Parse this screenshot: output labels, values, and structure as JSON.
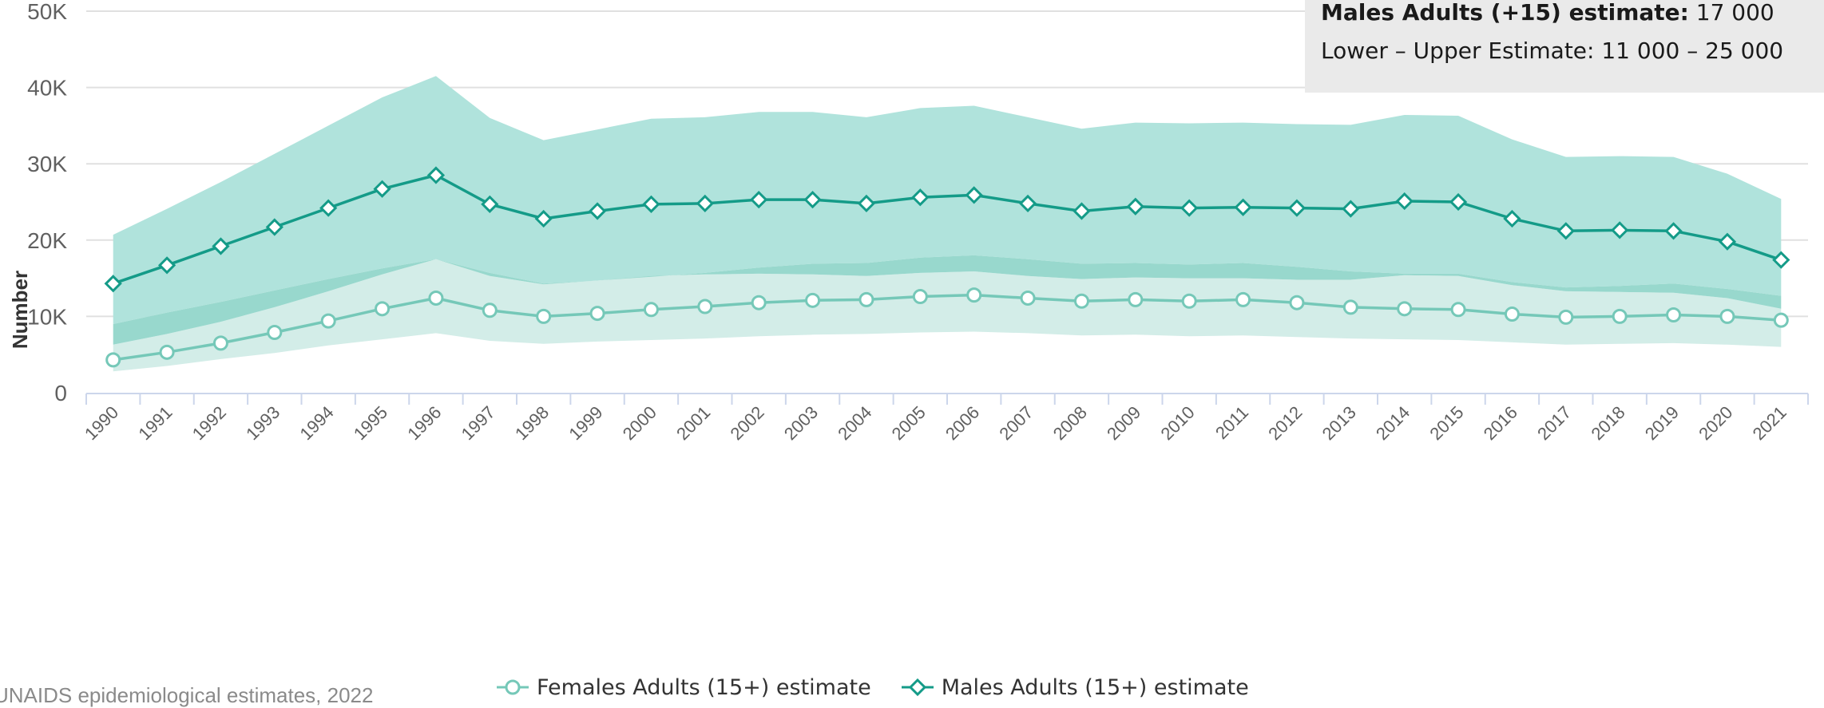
{
  "tooltip": {
    "line1_label": "Males Adults (+15) estimate:",
    "line1_value": "17 000",
    "line2": "Lower – Upper Estimate: 11 000 – 25 000"
  },
  "source_text": "UNAIDS epidemiological estimates, 2022",
  "colors": {
    "female_line": "#75c8b8",
    "male_line": "#149b88",
    "female_band": "#d3ede8",
    "male_band": "#b0e3dc",
    "band_overlap": "#98d8cd",
    "grid": "#e0e0e0",
    "axis": "#ccd6eb"
  },
  "chart_data": {
    "type": "line",
    "title": "",
    "xlabel": "",
    "ylabel": "Number",
    "ylim": [
      0,
      50000
    ],
    "yticks": [
      0,
      10000,
      20000,
      30000,
      40000,
      50000
    ],
    "ytick_labels": [
      "0",
      "10K",
      "20K",
      "30K",
      "40K",
      "50K"
    ],
    "grid": true,
    "legend_position": "bottom-center",
    "x": [
      "1990",
      "1991",
      "1992",
      "1993",
      "1994",
      "1995",
      "1996",
      "1997",
      "1998",
      "1999",
      "2000",
      "2001",
      "2002",
      "2003",
      "2004",
      "2005",
      "2006",
      "2007",
      "2008",
      "2009",
      "2010",
      "2011",
      "2012",
      "2013",
      "2014",
      "2015",
      "2016",
      "2017",
      "2018",
      "2019",
      "2020",
      "2021"
    ],
    "series": [
      {
        "name": "Females Adults (15+) estimate",
        "marker": "circle",
        "values": [
          4300,
          5300,
          6500,
          7900,
          9400,
          11000,
          12400,
          10800,
          10000,
          10400,
          10900,
          11300,
          11800,
          12100,
          12200,
          12600,
          12800,
          12400,
          12000,
          12200,
          12000,
          12200,
          11800,
          11200,
          11000,
          10900,
          10300,
          9900,
          10000,
          10200,
          10000,
          9500
        ],
        "lower": [
          2800,
          3500,
          4400,
          5200,
          6200,
          7000,
          7800,
          6800,
          6400,
          6700,
          6900,
          7100,
          7400,
          7600,
          7700,
          7900,
          8000,
          7800,
          7500,
          7600,
          7400,
          7500,
          7300,
          7100,
          7000,
          6900,
          6600,
          6300,
          6400,
          6500,
          6300,
          6000
        ],
        "upper": [
          6300,
          7700,
          9300,
          11200,
          13300,
          15500,
          17500,
          15300,
          14200,
          14700,
          15300,
          15500,
          15600,
          15500,
          15300,
          15700,
          15900,
          15300,
          14900,
          15100,
          15000,
          15000,
          14800,
          14800,
          15400,
          15300,
          14100,
          13300,
          13200,
          13100,
          12400,
          11000
        ]
      },
      {
        "name": "Males Adults (15+) estimate",
        "marker": "diamond",
        "values": [
          14300,
          16700,
          19200,
          21700,
          24200,
          26700,
          28500,
          24700,
          22800,
          23800,
          24700,
          24800,
          25300,
          25300,
          24800,
          25600,
          25900,
          24800,
          23800,
          24400,
          24200,
          24300,
          24200,
          24100,
          25100,
          25000,
          22800,
          21200,
          21300,
          21200,
          19800,
          17400
        ],
        "lower": [
          9000,
          10500,
          11900,
          13400,
          14900,
          16300,
          17500,
          15700,
          14300,
          14700,
          15200,
          15700,
          16400,
          16900,
          17000,
          17700,
          18000,
          17500,
          16900,
          17000,
          16800,
          17000,
          16500,
          15900,
          15600,
          15600,
          14500,
          13800,
          14000,
          14300,
          13600,
          12700
        ],
        "upper": [
          20700,
          24100,
          27600,
          31300,
          35000,
          38700,
          41500,
          36000,
          33100,
          34500,
          35900,
          36100,
          36800,
          36800,
          36100,
          37300,
          37600,
          36100,
          34600,
          35400,
          35300,
          35400,
          35200,
          35100,
          36400,
          36300,
          33200,
          30900,
          31000,
          30900,
          28700,
          25400
        ]
      }
    ]
  }
}
